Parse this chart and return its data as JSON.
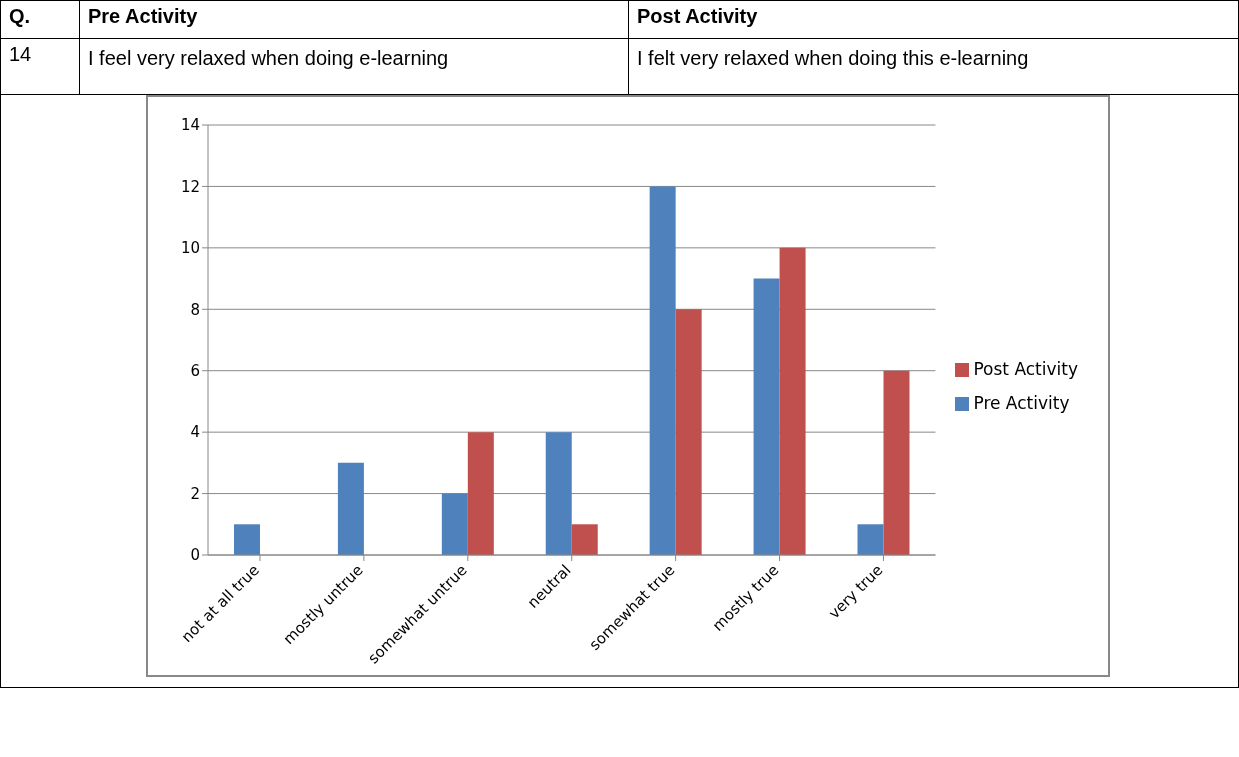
{
  "chart_data": {
    "type": "bar",
    "annotations": [
      "Q.",
      "Pre Activity",
      "Post Activity",
      "14",
      "I feel very relaxed when doing e-learning",
      "I felt very relaxed when doing this e-learning"
    ],
    "categories": [
      "not at all true",
      "mostly untrue",
      "somewhat untrue",
      "neutral",
      "somewhat true",
      "mostly true",
      "very true"
    ],
    "series": [
      {
        "name": "Pre Activity",
        "color": "#4f81bd",
        "values": [
          1,
          3,
          2,
          4,
          12,
          9,
          1
        ]
      },
      {
        "name": "Post Activity",
        "color": "#c0504d",
        "values": [
          0,
          0,
          4,
          1,
          8,
          10,
          6
        ]
      }
    ],
    "ylim": [
      0,
      14
    ],
    "yticks": [
      0,
      2,
      4,
      6,
      8,
      10,
      12,
      14
    ],
    "grid": "y",
    "legend": "right"
  }
}
